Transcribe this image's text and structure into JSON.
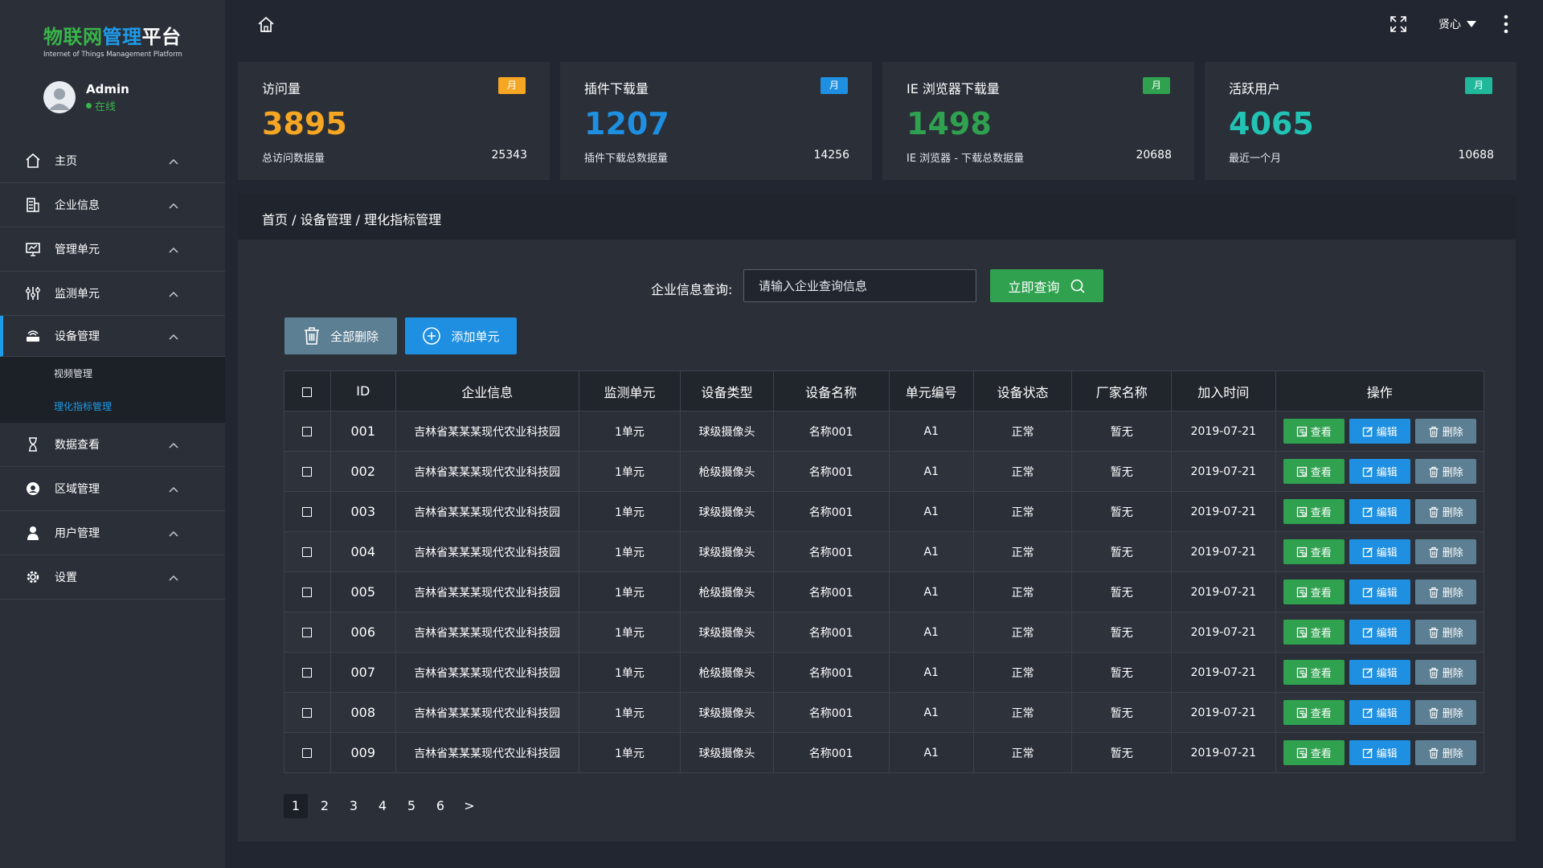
{
  "logo": {
    "title_part1": "物联网",
    "title_part2": "管理",
    "title_part3": "平台",
    "subtitle": "Internet of Things Management Platform"
  },
  "user": {
    "name": "Admin",
    "status": "在线"
  },
  "sidebar": {
    "items": [
      {
        "label": "主页",
        "icon": "home-icon"
      },
      {
        "label": "企业信息",
        "icon": "building-icon"
      },
      {
        "label": "管理单元",
        "icon": "monitor-chart-icon"
      },
      {
        "label": "监测单元",
        "icon": "sliders-icon"
      },
      {
        "label": "设备管理",
        "icon": "router-icon"
      },
      {
        "label": "数据查看",
        "icon": "hourglass-icon"
      },
      {
        "label": "区域管理",
        "icon": "location-icon"
      },
      {
        "label": "用户管理",
        "icon": "person-icon"
      },
      {
        "label": "设置",
        "icon": "gear-icon"
      }
    ],
    "submenu": [
      {
        "label": "视频管理"
      },
      {
        "label": "理化指标管理"
      }
    ]
  },
  "topbar": {
    "user_label": "贤心"
  },
  "stats": [
    {
      "title": "访问量",
      "badge": "月",
      "badge_color": "#f5a623",
      "value": "3895",
      "value_color": "#f5a623",
      "sub": "总访问数据量",
      "total": "25343"
    },
    {
      "title": "插件下载量",
      "badge": "月",
      "badge_color": "#1e8fe1",
      "value": "1207",
      "value_color": "#1e8fe1",
      "sub": "插件下载总数据量",
      "total": "14256"
    },
    {
      "title": "IE 浏览器下载量",
      "badge": "月",
      "badge_color": "#2fa14f",
      "value": "1498",
      "value_color": "#2fa14f",
      "sub": "IE 浏览器 - 下载总数据量",
      "total": "20688"
    },
    {
      "title": "活跃用户",
      "badge": "月",
      "badge_color": "#1fb89a",
      "value": "4065",
      "value_color": "#22c2b4",
      "sub": "最近一个月",
      "total": "10688"
    }
  ],
  "breadcrumb": "首页 / 设备管理 / 理化指标管理",
  "search": {
    "label": "企业信息查询:",
    "placeholder": "请输入企业查询信息",
    "button": "立即查询"
  },
  "actions": {
    "delete_all": "全部删除",
    "add_unit": "添加单元"
  },
  "table": {
    "headers": [
      "ID",
      "企业信息",
      "监测单元",
      "设备类型",
      "设备名称",
      "单元编号",
      "设备状态",
      "厂家名称",
      "加入时间",
      "操作"
    ],
    "rows": [
      [
        "001",
        "吉林省某某某现代农业科技园",
        "1单元",
        "球级摄像头",
        "名称001",
        "A1",
        "正常",
        "暂无",
        "2019-07-21"
      ],
      [
        "002",
        "吉林省某某某现代农业科技园",
        "1单元",
        "枪级摄像头",
        "名称001",
        "A1",
        "正常",
        "暂无",
        "2019-07-21"
      ],
      [
        "003",
        "吉林省某某某现代农业科技园",
        "1单元",
        "球级摄像头",
        "名称001",
        "A1",
        "正常",
        "暂无",
        "2019-07-21"
      ],
      [
        "004",
        "吉林省某某某现代农业科技园",
        "1单元",
        "球级摄像头",
        "名称001",
        "A1",
        "正常",
        "暂无",
        "2019-07-21"
      ],
      [
        "005",
        "吉林省某某某现代农业科技园",
        "1单元",
        "枪级摄像头",
        "名称001",
        "A1",
        "正常",
        "暂无",
        "2019-07-21"
      ],
      [
        "006",
        "吉林省某某某现代农业科技园",
        "1单元",
        "球级摄像头",
        "名称001",
        "A1",
        "正常",
        "暂无",
        "2019-07-21"
      ],
      [
        "007",
        "吉林省某某某现代农业科技园",
        "1单元",
        "枪级摄像头",
        "名称001",
        "A1",
        "正常",
        "暂无",
        "2019-07-21"
      ],
      [
        "008",
        "吉林省某某某现代农业科技园",
        "1单元",
        "球级摄像头",
        "名称001",
        "A1",
        "正常",
        "暂无",
        "2019-07-21"
      ],
      [
        "009",
        "吉林省某某某现代农业科技园",
        "1单元",
        "球级摄像头",
        "名称001",
        "A1",
        "正常",
        "暂无",
        "2019-07-21"
      ]
    ],
    "row_actions": {
      "view": "查看",
      "edit": "编辑",
      "delete": "删除"
    }
  },
  "pagination": {
    "pages": [
      "1",
      "2",
      "3",
      "4",
      "5",
      "6",
      ">"
    ],
    "current": "1"
  }
}
